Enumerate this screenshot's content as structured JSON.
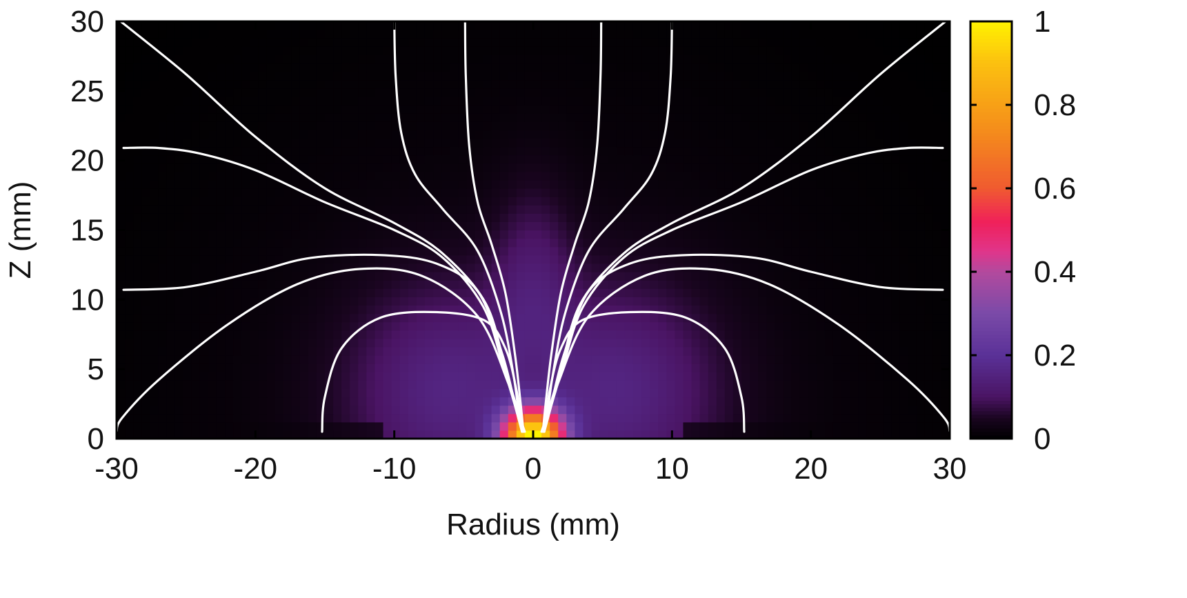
{
  "chart_data": {
    "type": "heatmap",
    "xlabel": "Radius (mm)",
    "ylabel": "Z (mm)",
    "xlim": [
      -30,
      30
    ],
    "ylim": [
      0,
      30
    ],
    "x_ticks": [
      -30,
      -20,
      -10,
      0,
      10,
      20,
      30
    ],
    "y_ticks": [
      0,
      5,
      10,
      15,
      20,
      25,
      30
    ],
    "colorbar": {
      "range": [
        0,
        1
      ],
      "ticks": [
        0,
        0.2,
        0.4,
        0.6,
        0.8,
        1
      ],
      "tick_labels": [
        "0",
        "0.2",
        "0.4",
        "0.6",
        "0.8",
        "1"
      ],
      "colormap": [
        {
          "v": 0.0,
          "color": "#000000"
        },
        {
          "v": 0.05,
          "color": "#1a0520"
        },
        {
          "v": 0.1,
          "color": "#4a1463"
        },
        {
          "v": 0.2,
          "color": "#5a3197"
        },
        {
          "v": 0.3,
          "color": "#7a4aa8"
        },
        {
          "v": 0.4,
          "color": "#b24a9e"
        },
        {
          "v": 0.45,
          "color": "#e0358a"
        },
        {
          "v": 0.52,
          "color": "#f0205a"
        },
        {
          "v": 0.6,
          "color": "#f05a30"
        },
        {
          "v": 0.75,
          "color": "#f5901a"
        },
        {
          "v": 0.9,
          "color": "#fcc010"
        },
        {
          "v": 1.0,
          "color": "#fff200"
        }
      ]
    },
    "field_lines": [
      {
        "points": [
          [
            -30,
            0.5
          ],
          [
            -29.6,
            1.5
          ],
          [
            -27,
            4.2
          ],
          [
            -22,
            8.2
          ],
          [
            -17,
            11.1
          ],
          [
            -12.5,
            12.2
          ],
          [
            -8,
            11.7
          ],
          [
            -4,
            8.8
          ],
          [
            -1.8,
            4
          ],
          [
            -0.9,
            1
          ],
          [
            -0.7,
            0.5
          ]
        ]
      },
      {
        "points": [
          [
            30,
            0.5
          ],
          [
            29.6,
            1.5
          ],
          [
            27,
            4.2
          ],
          [
            22,
            8.2
          ],
          [
            17,
            11.1
          ],
          [
            12.5,
            12.2
          ],
          [
            8,
            11.7
          ],
          [
            4,
            8.8
          ],
          [
            1.8,
            4
          ],
          [
            0.9,
            1
          ],
          [
            0.7,
            0.5
          ]
        ]
      },
      {
        "points": [
          [
            -29.5,
            10.7
          ],
          [
            -25,
            10.9
          ],
          [
            -20,
            12
          ],
          [
            -16,
            13
          ],
          [
            -11,
            13.2
          ],
          [
            -7,
            12.6
          ],
          [
            -4,
            10.6
          ],
          [
            -2.2,
            6
          ],
          [
            -1.2,
            2
          ],
          [
            -0.8,
            0.5
          ]
        ]
      },
      {
        "points": [
          [
            29.5,
            10.7
          ],
          [
            25,
            10.9
          ],
          [
            20,
            12
          ],
          [
            16,
            13
          ],
          [
            11,
            13.2
          ],
          [
            7,
            12.6
          ],
          [
            4,
            10.6
          ],
          [
            2.2,
            6
          ],
          [
            1.2,
            2
          ],
          [
            0.8,
            0.5
          ]
        ]
      },
      {
        "points": [
          [
            -29.5,
            20.9
          ],
          [
            -27,
            20.9
          ],
          [
            -24,
            20.5
          ],
          [
            -20,
            19.3
          ],
          [
            -15,
            17
          ],
          [
            -10,
            15
          ],
          [
            -6.5,
            13
          ],
          [
            -3.6,
            9.5
          ],
          [
            -2.1,
            5
          ],
          [
            -1.2,
            2
          ],
          [
            -0.8,
            0.5
          ]
        ]
      },
      {
        "points": [
          [
            29.5,
            20.9
          ],
          [
            27,
            20.9
          ],
          [
            24,
            20.5
          ],
          [
            20,
            19.3
          ],
          [
            15,
            17
          ],
          [
            10,
            15
          ],
          [
            6.5,
            13
          ],
          [
            3.6,
            9.5
          ],
          [
            2.1,
            5
          ],
          [
            1.2,
            2
          ],
          [
            0.8,
            0.5
          ]
        ]
      },
      {
        "points": [
          [
            -29.7,
            30
          ],
          [
            -25,
            26.2
          ],
          [
            -20,
            21.7
          ],
          [
            -15,
            18
          ],
          [
            -10,
            15.5
          ],
          [
            -6.5,
            13.3
          ],
          [
            -3.4,
            9.7
          ],
          [
            -2,
            5
          ],
          [
            -1.1,
            2
          ],
          [
            -0.6,
            0.5
          ]
        ]
      },
      {
        "points": [
          [
            29.7,
            30
          ],
          [
            25,
            26.2
          ],
          [
            20,
            21.7
          ],
          [
            15,
            18
          ],
          [
            10,
            15.5
          ],
          [
            6.5,
            13.3
          ],
          [
            3.4,
            9.7
          ],
          [
            2,
            5
          ],
          [
            1.1,
            2
          ],
          [
            0.6,
            0.5
          ]
        ]
      },
      {
        "points": [
          [
            -10,
            30
          ],
          [
            -9.9,
            26
          ],
          [
            -9.5,
            22
          ],
          [
            -8.5,
            19
          ],
          [
            -6.5,
            16.5
          ],
          [
            -4,
            13.5
          ],
          [
            -2.3,
            9
          ],
          [
            -1.4,
            4.5
          ],
          [
            -1,
            1.5
          ],
          [
            -0.8,
            0.5
          ]
        ]
      },
      {
        "points": [
          [
            10,
            30
          ],
          [
            9.9,
            26
          ],
          [
            9.5,
            22
          ],
          [
            8.5,
            19
          ],
          [
            6.5,
            16.5
          ],
          [
            4,
            13.5
          ],
          [
            2.3,
            9
          ],
          [
            1.4,
            4.5
          ],
          [
            1,
            1.5
          ],
          [
            0.8,
            0.5
          ]
        ]
      },
      {
        "points": [
          [
            -4.9,
            30
          ],
          [
            -4.85,
            26
          ],
          [
            -4.6,
            21
          ],
          [
            -4,
            17
          ],
          [
            -3,
            14
          ],
          [
            -2,
            10.5
          ],
          [
            -1.3,
            6
          ],
          [
            -0.9,
            2.5
          ],
          [
            -0.7,
            0.5
          ]
        ]
      },
      {
        "points": [
          [
            4.9,
            30
          ],
          [
            4.85,
            26
          ],
          [
            4.6,
            21
          ],
          [
            4,
            17
          ],
          [
            3,
            14
          ],
          [
            2,
            10.5
          ],
          [
            1.3,
            6
          ],
          [
            0.9,
            2.5
          ],
          [
            0.7,
            0.5
          ]
        ]
      },
      {
        "points": [
          [
            -15.2,
            0.5
          ],
          [
            -15,
            3
          ],
          [
            -13.8,
            6.5
          ],
          [
            -11,
            8.7
          ],
          [
            -7,
            9.1
          ],
          [
            -3.5,
            8.5
          ],
          [
            -2,
            6.5
          ],
          [
            -1.2,
            3.5
          ],
          [
            -0.9,
            1.2
          ],
          [
            -0.8,
            0.5
          ]
        ]
      },
      {
        "points": [
          [
            15.2,
            0.5
          ],
          [
            15,
            3
          ],
          [
            13.8,
            6.5
          ],
          [
            11,
            8.7
          ],
          [
            7,
            9.1
          ],
          [
            3.5,
            8.5
          ],
          [
            2,
            6.5
          ],
          [
            1.2,
            3.5
          ],
          [
            0.9,
            1.2
          ],
          [
            0.8,
            0.5
          ]
        ]
      }
    ]
  }
}
